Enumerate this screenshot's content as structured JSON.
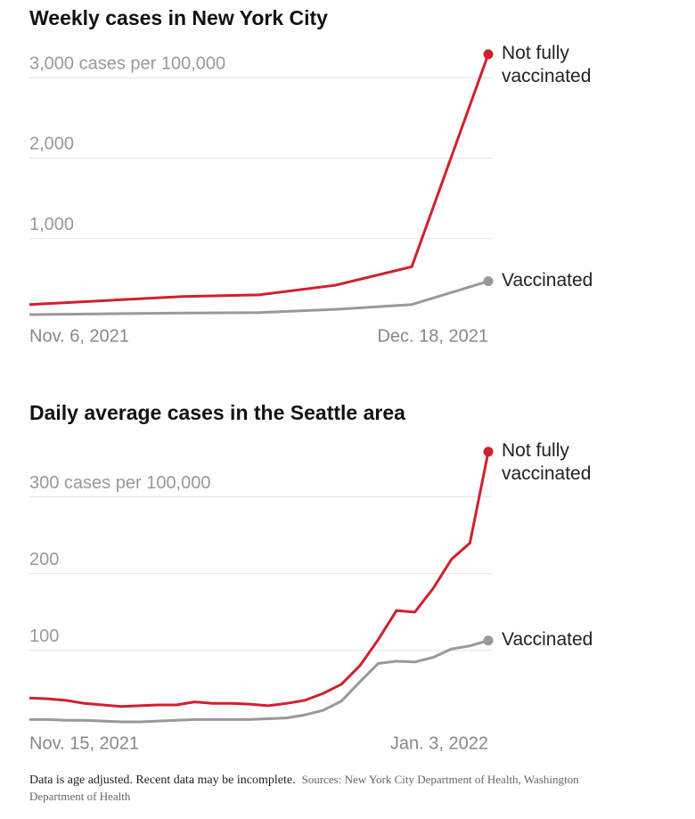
{
  "chart_data": [
    {
      "type": "line",
      "title": "Weekly cases in New York City",
      "categories": [
        "Nov. 6, 2021",
        null,
        null,
        null,
        null,
        null,
        "Dec. 18, 2021"
      ],
      "series": [
        {
          "name": "Not fully vaccinated",
          "color": "#d0202e",
          "values": [
            180,
            230,
            280,
            300,
            420,
            650,
            3290
          ]
        },
        {
          "name": "Vaccinated",
          "color": "#999999",
          "values": [
            55,
            65,
            75,
            80,
            120,
            180,
            470
          ]
        }
      ],
      "ylim": [
        0,
        3300
      ],
      "yticks": [
        {
          "value": 1000,
          "label": "1,000"
        },
        {
          "value": 2000,
          "label": "2,000"
        },
        {
          "value": 3000,
          "label": "3,000 cases per 100,000"
        }
      ],
      "grid": true
    },
    {
      "type": "line",
      "title": "Daily average cases in the Seattle area",
      "categories": [
        "Nov. 15, 2021",
        null,
        null,
        null,
        null,
        null,
        null,
        null,
        null,
        null,
        null,
        null,
        null,
        null,
        null,
        null,
        null,
        null,
        null,
        null,
        null,
        null,
        null,
        null,
        null,
        "Jan. 3, 2022"
      ],
      "series": [
        {
          "name": "Not fully vaccinated",
          "color": "#d0202e",
          "values": [
            38,
            37,
            35,
            31,
            29,
            27,
            28,
            29,
            29,
            33,
            31,
            31,
            30,
            28,
            31,
            35,
            44,
            56,
            80,
            114,
            152,
            150,
            181,
            219,
            240,
            359
          ]
        },
        {
          "name": "Vaccinated",
          "color": "#999999",
          "values": [
            10,
            10,
            9,
            9,
            8,
            7,
            7,
            8,
            9,
            10,
            10,
            10,
            10,
            11,
            12,
            16,
            22,
            34,
            59,
            83,
            86,
            85,
            91,
            102,
            106,
            113
          ]
        }
      ],
      "ylim": [
        0,
        360
      ],
      "yticks": [
        100,
        200,
        {
          "value": 300,
          "label": "300 cases per 100,000"
        }
      ],
      "grid": true
    }
  ],
  "note": "Data is age adjusted. Recent data may be incomplete.",
  "source": "Sources: New York City Department of Health, Washington Department of Health"
}
